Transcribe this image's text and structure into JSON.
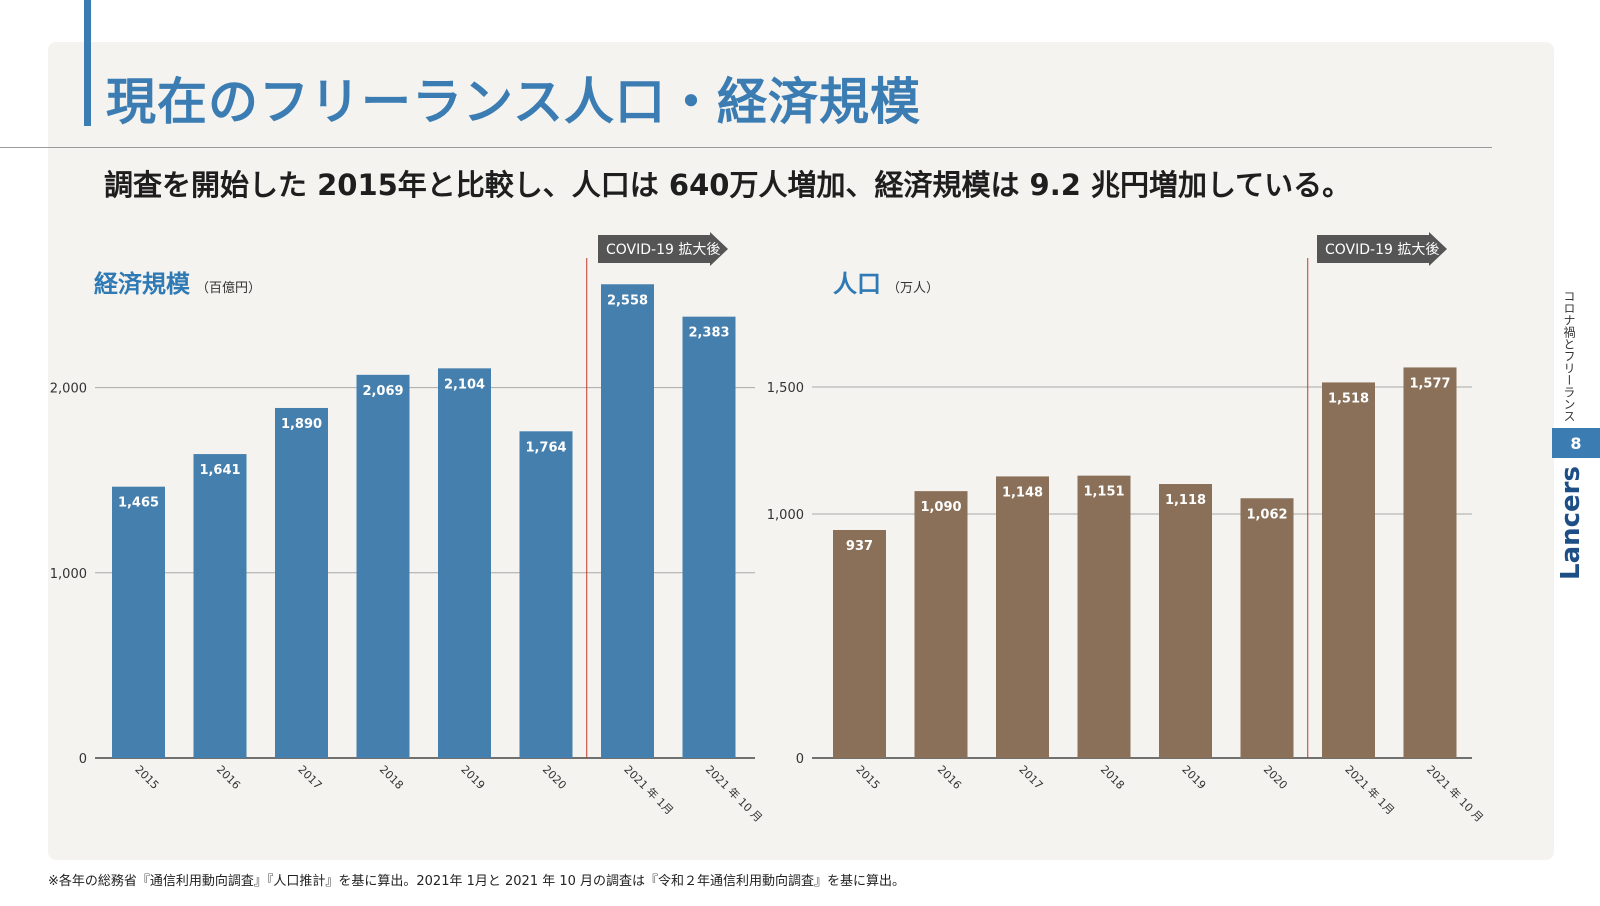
{
  "title": "現在のフリーランス人口・経済規模",
  "subtitle": "調査を開始した 2015年と比較し、人口は 640万人増加、経済規模は 9.2 兆円増加している。",
  "footnote": "※各年の総務省『通信利用動向調査』『人口推計』を基に算出。2021年 1月と 2021 年 10 月の調査は『令和２年通信利用動向調査』を基に算出。",
  "side_label": "コロナ禍とフリーランス",
  "page_number": "8",
  "brand": "Lancers",
  "colors": {
    "accent": "#3b7db3",
    "econ_bar": "#457fad",
    "pop_bar": "#8a7058",
    "covid_line": "#c0392b",
    "covid_arrow": "#555555"
  },
  "chart_data": [
    {
      "type": "bar",
      "title": "経済規模",
      "unit": "（百億円）",
      "categories": [
        "2015",
        "2016",
        "2017",
        "2018",
        "2019",
        "2020",
        "2021 年 1月",
        "2021 年 10 月"
      ],
      "values": [
        1465,
        1641,
        1890,
        2069,
        2104,
        1764,
        2558,
        2383
      ],
      "labels": [
        "1,465",
        "1,641",
        "1,890",
        "2,069",
        "2,104",
        "1,764",
        "2,558",
        "2,383"
      ],
      "yticks": [
        0,
        1000,
        2000
      ],
      "ytick_labels": [
        "0",
        "1,000",
        "2,000"
      ],
      "ylim": [
        0,
        2600
      ],
      "grid": true,
      "annotation": "COVID-19 拡大後",
      "annotation_from_index": 6
    },
    {
      "type": "bar",
      "title": "人口",
      "unit": "（万人）",
      "categories": [
        "2015",
        "2016",
        "2017",
        "2018",
        "2019",
        "2020",
        "2021 年 1月",
        "2021 年 10 月"
      ],
      "values": [
        937,
        1090,
        1148,
        1151,
        1118,
        1062,
        1518,
        1577
      ],
      "labels": [
        "937",
        "1,090",
        "1,148",
        "1,151",
        "1,118",
        "1,062",
        "1,518",
        "1,577"
      ],
      "yticks": [
        0,
        1000,
        1500
      ],
      "ytick_labels": [
        "0",
        "1,000",
        "1,500"
      ],
      "ylim": [
        0,
        1600
      ],
      "ybreak": true,
      "grid": true,
      "annotation": "COVID-19 拡大後",
      "annotation_from_index": 6
    }
  ]
}
